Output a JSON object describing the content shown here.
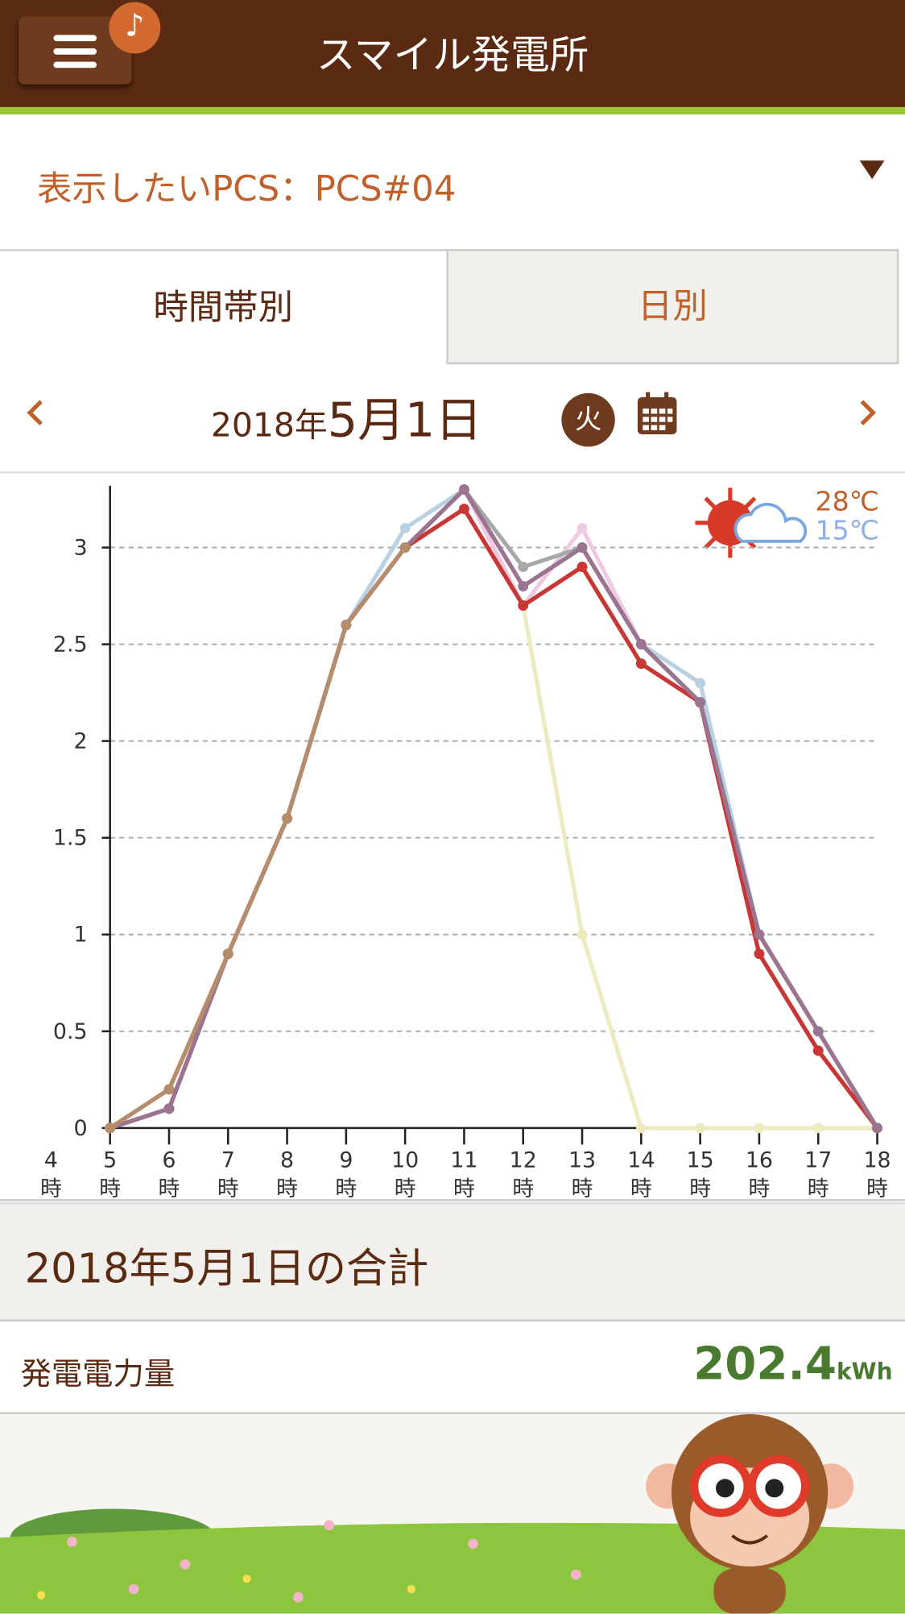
{
  "header": {
    "title": "スマイル発電所"
  },
  "pcs_selector": {
    "label": "表示したいPCS：PCS#04"
  },
  "tabs": [
    "時間帯別",
    "日別"
  ],
  "date": {
    "year": "2018年",
    "day": "5月1日",
    "weekday": "火"
  },
  "weather": {
    "high": "28℃",
    "low": "15℃"
  },
  "chart_data": {
    "type": "line",
    "x": [
      5,
      6,
      7,
      8,
      9,
      10,
      11,
      12,
      13,
      14,
      15,
      16,
      17,
      18
    ],
    "xlim": [
      5,
      18
    ],
    "xticks": [
      {
        "value": 4,
        "label": "4時"
      },
      {
        "value": 5,
        "label": "5時"
      },
      {
        "value": 6,
        "label": "6時"
      },
      {
        "value": 7,
        "label": "7時"
      },
      {
        "value": 8,
        "label": "8時"
      },
      {
        "value": 9,
        "label": "9時"
      },
      {
        "value": 10,
        "label": "10時"
      },
      {
        "value": 11,
        "label": "11時"
      },
      {
        "value": 12,
        "label": "12時"
      },
      {
        "value": 13,
        "label": "13時"
      },
      {
        "value": 14,
        "label": "14時"
      },
      {
        "value": 15,
        "label": "15時"
      },
      {
        "value": 16,
        "label": "16時"
      },
      {
        "value": 17,
        "label": "17時"
      },
      {
        "value": 18,
        "label": "18時"
      }
    ],
    "ylim": [
      0,
      3.3
    ],
    "yticks": [
      0,
      0.5,
      1,
      1.5,
      2,
      2.5,
      3
    ],
    "grid": true,
    "series": [
      {
        "color": "#ecebbd",
        "values": [
          0,
          0.2,
          0.9,
          1.6,
          2.6,
          3.0,
          3.3,
          2.7,
          1.0,
          0,
          0,
          0,
          0,
          0
        ]
      },
      {
        "color": "#b9d0e2",
        "values": [
          0,
          0.1,
          0.9,
          1.6,
          2.6,
          3.1,
          3.3,
          2.8,
          3.0,
          2.5,
          2.3,
          1.0,
          0.5,
          0
        ]
      },
      {
        "color": "#f0c9e0",
        "values": [
          0,
          0.1,
          0.9,
          1.6,
          2.6,
          3.0,
          3.3,
          2.7,
          3.1,
          2.5,
          2.2,
          1.0,
          0.5,
          0
        ]
      },
      {
        "color": "#a8a8a8",
        "values": [
          0,
          0.1,
          0.9,
          1.6,
          2.6,
          3.0,
          3.3,
          2.9,
          3.0,
          2.5,
          2.2,
          1.0,
          0.5,
          0
        ]
      },
      {
        "color": "#7f7f7f",
        "values": [
          0,
          0.1,
          0.9,
          1.6,
          2.6,
          3.0,
          3.3,
          2.8,
          3.0,
          2.5,
          2.2,
          1.0,
          0.5,
          0
        ]
      },
      {
        "color": "#c0622e",
        "values": [
          0,
          0.2,
          0.9,
          1.6,
          2.6,
          3.0,
          3.2,
          2.7,
          2.9,
          2.4,
          2.2,
          0.9,
          0.4,
          0
        ]
      },
      {
        "color": "#c83636",
        "values": [
          0,
          0.1,
          0.9,
          1.6,
          2.6,
          3.0,
          3.2,
          2.7,
          2.9,
          2.4,
          2.2,
          0.9,
          0.4,
          0
        ]
      },
      {
        "color": "#9a7490",
        "values": [
          0,
          0.1,
          0.9,
          1.6,
          2.6,
          3.0,
          3.3,
          2.8,
          3.0,
          2.5,
          2.2,
          1.0,
          0.5,
          0
        ]
      },
      {
        "color": "#b58c6c",
        "values": [
          0,
          0.2,
          0.9,
          1.6,
          2.6,
          3.0,
          null,
          null,
          null,
          null,
          null,
          null,
          null,
          null
        ]
      }
    ]
  },
  "summary": {
    "title": "2018年5月1日の合計",
    "label": "発電電力量",
    "value": "202.4",
    "unit": "kWh"
  }
}
